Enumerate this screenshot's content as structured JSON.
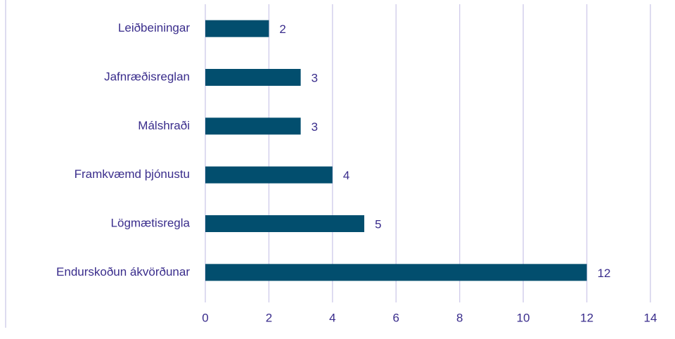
{
  "chart_data": {
    "type": "bar",
    "orientation": "horizontal",
    "categories": [
      "Leiðbeiningar",
      "Jafnræðisreglan",
      "Málshraði",
      "Framkvæmd þjónustu",
      "Lögmætisregla",
      "Endurskoðun ákvörðunar"
    ],
    "values": [
      2,
      3,
      3,
      4,
      5,
      12
    ],
    "color": "#024e6e",
    "xlim": [
      0,
      14
    ],
    "xticks": [
      0,
      2,
      4,
      6,
      8,
      10,
      12,
      14
    ],
    "grid": true
  }
}
